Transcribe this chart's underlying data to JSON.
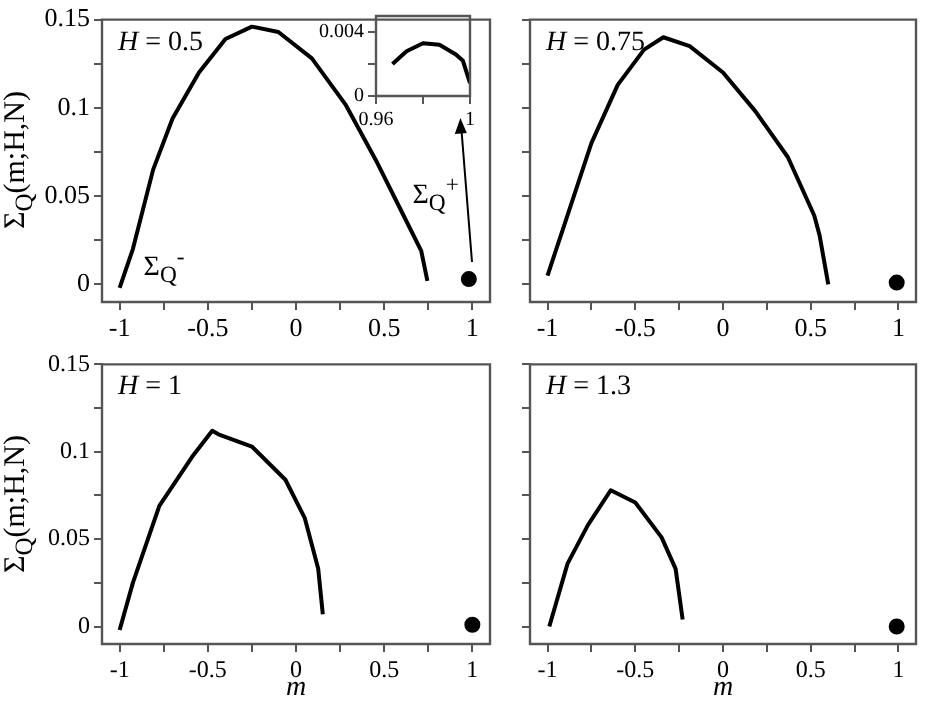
{
  "chart_data": [
    {
      "type": "line",
      "title": "H = 0.5",
      "ylabel": "Σ$_{Q}$(m;H,N)",
      "xlim": [
        -1.1,
        1.1
      ],
      "ylim": [
        -0.01,
        0.15
      ],
      "grid": false,
      "marker": "none",
      "line_style": "solid",
      "xticks": [
        -1,
        {
          "value": -0.75,
          "label": null
        },
        -0.5,
        {
          "value": -0.25,
          "label": null
        },
        0,
        {
          "value": 0.25,
          "label": null
        },
        0.5,
        {
          "value": 0.75,
          "label": null
        },
        1
      ],
      "yticks": [
        0,
        {
          "value": 0.025,
          "label": null
        },
        0.05,
        {
          "value": 0.075,
          "label": null
        },
        0.1,
        {
          "value": 0.125,
          "label": null
        },
        0.15
      ],
      "annotations": [
        "Σ$_{Q}$$^{-}$",
        "Σ$_{Q}$$^{+}$"
      ],
      "series": [
        {
          "color": "#000000",
          "x": [
            -1,
            -0.925,
            -0.81,
            -0.7,
            -0.55,
            -0.4,
            -0.25,
            -0.1,
            0.09,
            0.28,
            0.46,
            0.61,
            0.71,
            0.745
          ],
          "values": [
            -0.002,
            0.02,
            0.065,
            0.094,
            0.12,
            0.139,
            0.146,
            0.143,
            0.128,
            0.102,
            0.069,
            0.039,
            0.019,
            0.002
          ]
        },
        {
          "type": "scatter",
          "marker": "circle",
          "color": "#000000",
          "x": [
            0.98
          ],
          "values": [
            0.003
          ]
        }
      ]
    },
    {
      "type": "line",
      "xlim": [
        0.96,
        1
      ],
      "ylim": [
        0,
        0.005
      ],
      "grid": false,
      "marker": "none",
      "line_style": "solid",
      "xticks": [
        0.96,
        {
          "value": 0.98,
          "label": null
        },
        1
      ],
      "yticks": [
        0,
        {
          "value": 0.002,
          "label": null
        },
        0.004
      ],
      "series": [
        {
          "color": "#000000",
          "x": [
            0.967,
            0.973,
            0.98,
            0.987,
            0.994,
            0.997,
            1
          ],
          "values": [
            0.002,
            0.0028,
            0.0033,
            0.0032,
            0.0026,
            0.0022,
            0.0008
          ]
        }
      ]
    },
    {
      "type": "line",
      "title": "H = 0.75",
      "xlim": [
        -1.1,
        1.1
      ],
      "ylim": [
        -0.01,
        0.15
      ],
      "grid": false,
      "marker": "none",
      "line_style": "solid",
      "tick_labels": "x",
      "xticks": [
        -1,
        {
          "value": -0.75,
          "label": null
        },
        -0.5,
        {
          "value": -0.25,
          "label": null
        },
        0,
        {
          "value": 0.25,
          "label": null
        },
        0.5,
        {
          "value": 0.75,
          "label": null
        },
        1
      ],
      "yticks": [
        0,
        {
          "value": 0.025,
          "label": null
        },
        0.05,
        {
          "value": 0.075,
          "label": null
        },
        0.1,
        {
          "value": 0.125,
          "label": null
        },
        0.15
      ],
      "series": [
        {
          "color": "#000000",
          "x": [
            -1,
            -0.9,
            -0.75,
            -0.6,
            -0.45,
            -0.34,
            -0.19,
            0,
            0.185,
            0.37,
            0.52,
            0.55,
            0.6
          ],
          "values": [
            0.005,
            0.035,
            0.08,
            0.113,
            0.133,
            0.14,
            0.135,
            0.12,
            0.098,
            0.072,
            0.039,
            0.028,
            0
          ]
        },
        {
          "type": "scatter",
          "marker": "circle",
          "color": "#000000",
          "x": [
            0.99
          ],
          "values": [
            0.001
          ]
        }
      ]
    },
    {
      "type": "line",
      "title": "H = 1",
      "xlabel": "m",
      "ylabel": "Σ$_{Q}$(m;H,N)",
      "xlim": [
        -1.1,
        1.1
      ],
      "ylim": [
        -0.01,
        0.15
      ],
      "grid": false,
      "marker": "none",
      "line_style": "solid",
      "xticks": [
        -1,
        {
          "value": -0.75,
          "label": null
        },
        -0.5,
        {
          "value": -0.25,
          "label": null
        },
        0,
        {
          "value": 0.25,
          "label": null
        },
        0.5,
        {
          "value": 0.75,
          "label": null
        },
        1
      ],
      "yticks": [
        0,
        {
          "value": 0.025,
          "label": null
        },
        0.05,
        {
          "value": 0.075,
          "label": null
        },
        0.1,
        {
          "value": 0.125,
          "label": null
        },
        0.15
      ],
      "series": [
        {
          "color": "#000000",
          "x": [
            -1,
            -0.925,
            -0.775,
            -0.59,
            -0.475,
            -0.44,
            -0.25,
            -0.06,
            0.05,
            0.126,
            0.152
          ],
          "values": [
            -0.002,
            0.025,
            0.069,
            0.097,
            0.112,
            0.11,
            0.103,
            0.084,
            0.062,
            0.033,
            0.007
          ]
        },
        {
          "type": "scatter",
          "marker": "circle",
          "color": "#000000",
          "x": [
            1
          ],
          "values": [
            0.001
          ]
        }
      ]
    },
    {
      "type": "line",
      "title": "H = 1.3",
      "xlabel": "m",
      "xlim": [
        -1.1,
        1.1
      ],
      "ylim": [
        -0.01,
        0.15
      ],
      "grid": false,
      "marker": "none",
      "line_style": "solid",
      "tick_labels": "x",
      "xticks": [
        -1,
        {
          "value": -0.75,
          "label": null
        },
        -0.5,
        {
          "value": -0.25,
          "label": null
        },
        0,
        {
          "value": 0.25,
          "label": null
        },
        0.5,
        {
          "value": 0.75,
          "label": null
        },
        1
      ],
      "yticks": [
        0,
        {
          "value": 0.025,
          "label": null
        },
        0.05,
        {
          "value": 0.075,
          "label": null
        },
        0.1,
        {
          "value": 0.125,
          "label": null
        },
        0.15
      ],
      "series": [
        {
          "color": "#000000",
          "x": [
            -0.99,
            -0.886,
            -0.77,
            -0.64,
            -0.5,
            -0.35,
            -0.27,
            -0.23
          ],
          "values": [
            0,
            0.036,
            0.058,
            0.078,
            0.071,
            0.051,
            0.033,
            0.004
          ]
        },
        {
          "type": "scatter",
          "marker": "circle",
          "color": "#000000",
          "x": [
            0.99
          ],
          "values": [
            0
          ]
        }
      ]
    }
  ]
}
